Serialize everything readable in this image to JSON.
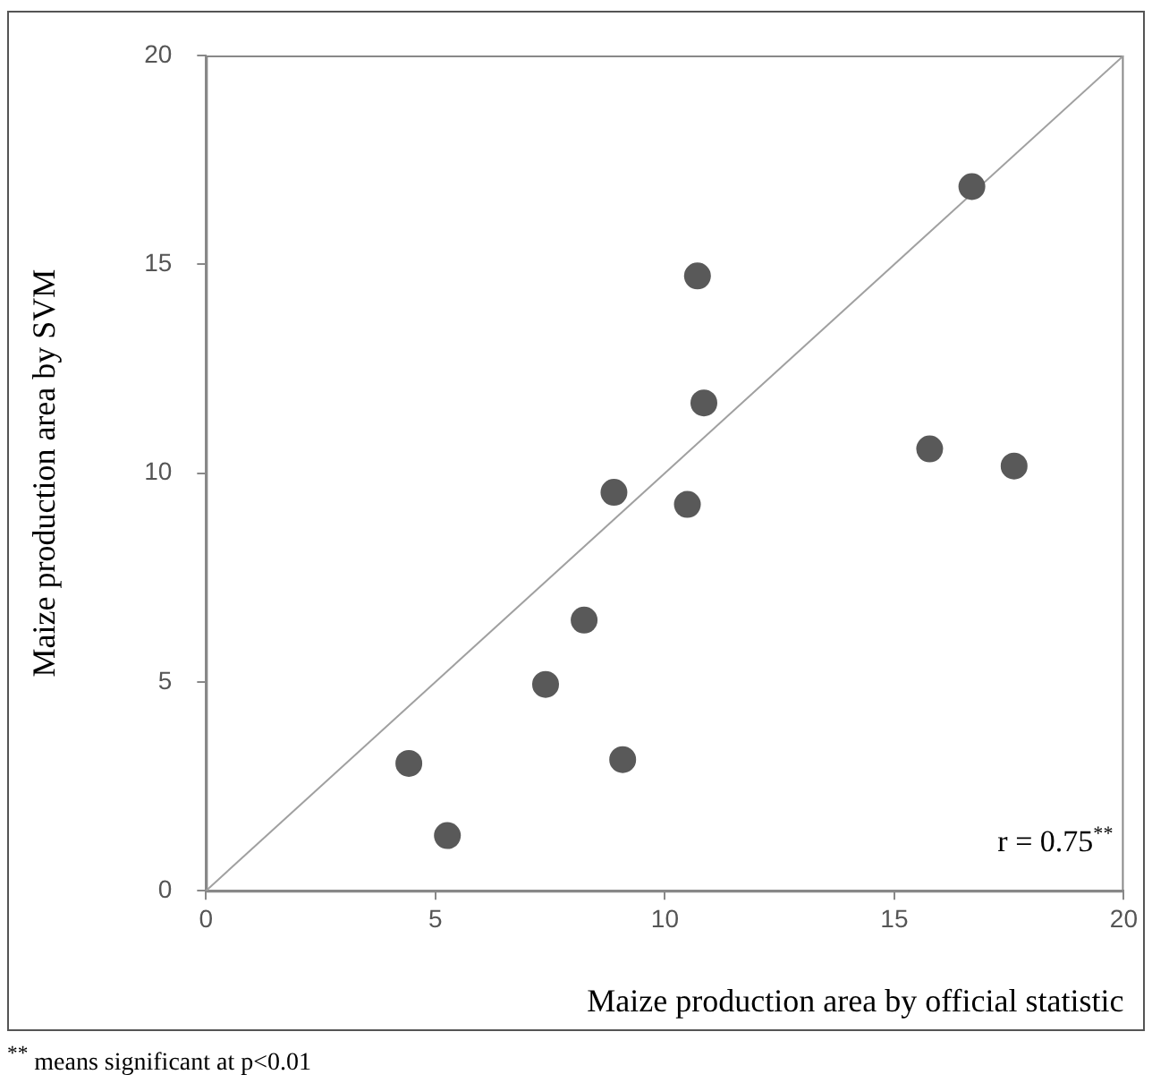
{
  "chart_data": {
    "type": "scatter",
    "xlabel": "Maize production area by official statistic",
    "ylabel": "Maize production area by SVM",
    "xlim": [
      0,
      20
    ],
    "xticks": [
      0,
      5,
      10,
      15,
      20
    ],
    "ylim": [
      0,
      20
    ],
    "yticks": [
      0,
      5,
      10,
      15,
      20
    ],
    "grid": false,
    "legend": false,
    "marker": "circle",
    "annotations": [
      "r = 0.75$^{**}$",
      "$^{**}$ means significant at p<0.01"
    ],
    "series": [
      {
        "color": "#595959",
        "x": [
          4.42,
          5.26,
          7.4,
          8.24,
          9.08,
          8.89,
          10.49,
          10.71,
          10.85,
          15.77,
          16.69,
          17.61
        ],
        "values": [
          3.05,
          1.32,
          4.94,
          6.48,
          3.14,
          9.54,
          9.25,
          14.72,
          11.68,
          10.58,
          16.86,
          10.17
        ]
      },
      {
        "type": "line",
        "color": "#a0a0a0",
        "marker": "none",
        "x": [
          0,
          20
        ],
        "values": [
          0,
          20
        ]
      }
    ]
  }
}
